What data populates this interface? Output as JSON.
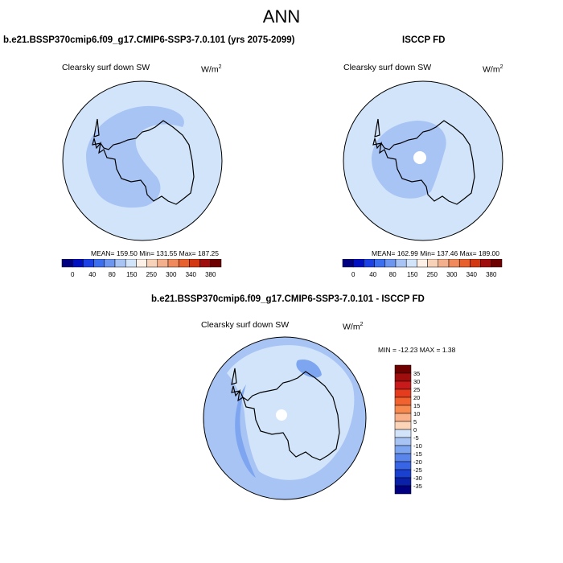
{
  "page": {
    "title": "ANN",
    "season": "ANN"
  },
  "panels": {
    "model": {
      "title": "b.e21.BSSP370cmip6.f09_g17.CMIP6-SSP3-7.0.101 (yrs 2075-2099)",
      "variable": "Clearsky surf down SW",
      "units_main": "W/m",
      "units_exp": "2",
      "stats": "MEAN= 159.50  Min= 131.55  Max= 187.25"
    },
    "obs": {
      "title": "ISCCP FD",
      "variable": "Clearsky surf down SW",
      "units_main": "W/m",
      "units_exp": "2",
      "stats": "MEAN= 162.99  Min= 137.46  Max= 189.00"
    },
    "diff": {
      "title": "b.e21.BSSP370cmip6.f09_g17.CMIP6-SSP3-7.0.101 - ISCCP FD",
      "variable": "Clearsky surf down SW",
      "units_main": "W/m",
      "units_exp": "2",
      "stats": "MIN = -12.23 MAX =   1.38"
    }
  },
  "colorbars": {
    "abs": {
      "colors": [
        "#000080",
        "#0010c0",
        "#1a40e6",
        "#3c6ef0",
        "#6c96f0",
        "#a8c4f4",
        "#d2e4fa",
        "#fdf0e6",
        "#f8d2b8",
        "#f4b08c",
        "#f08a5c",
        "#e8602e",
        "#d43812",
        "#a00d0d",
        "#6e0000"
      ],
      "labels": [
        "0",
        "40",
        "80",
        "150",
        "250",
        "300",
        "340",
        "380"
      ]
    },
    "diff": {
      "colors": [
        "#6e0000",
        "#a00d0d",
        "#c81a1a",
        "#e63c1e",
        "#f2622e",
        "#f88a50",
        "#fab088",
        "#fcd4b8",
        "#d2e4fa",
        "#a8c4f4",
        "#7ea6f0",
        "#5a86ec",
        "#3864e6",
        "#1a40d2",
        "#0a20a8",
        "#000080"
      ],
      "labels": [
        "35",
        "30",
        "25",
        "20",
        "15",
        "10",
        "5",
        "0",
        "-5",
        "-10",
        "-15",
        "-20",
        "-25",
        "-30",
        "-35"
      ]
    }
  },
  "map_colors": {
    "light_blue": "#d2e4fa",
    "mid_blue": "#a8c4f4",
    "deep_blue": "#7ea6f0",
    "white": "#ffffff"
  }
}
